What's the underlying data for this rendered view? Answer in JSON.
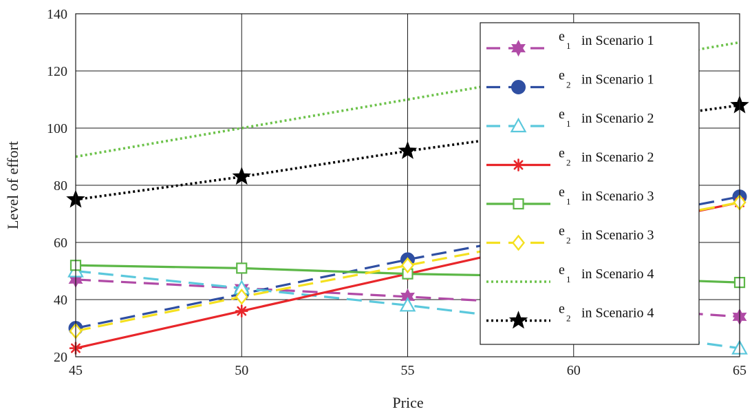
{
  "chart_data": {
    "type": "line",
    "xlabel": "Price",
    "ylabel": "Level of effort",
    "xlim": [
      45,
      65
    ],
    "ylim": [
      20,
      140
    ],
    "xticks": [
      45,
      50,
      55,
      60,
      65
    ],
    "yticks": [
      20,
      40,
      60,
      80,
      100,
      120,
      140
    ],
    "grid": true,
    "legend_position": "top-right",
    "series": [
      {
        "name": "e1 in Scenario 1",
        "var": "e",
        "sub": "1",
        "label_rest": "in Scenario 1",
        "color": "#b04aa6",
        "dash": "dashed",
        "marker": "hexstar",
        "x": [
          45,
          50,
          55,
          60,
          65
        ],
        "y": [
          47,
          44,
          41,
          38,
          34
        ]
      },
      {
        "name": "e2 in Scenario 1",
        "var": "e",
        "sub": "2",
        "label_rest": "in Scenario 1",
        "color": "#2f4fa2",
        "dash": "dashed",
        "marker": "circle",
        "x": [
          45,
          50,
          55,
          60,
          65
        ],
        "y": [
          30,
          42,
          54,
          65,
          76
        ]
      },
      {
        "name": "e1 in Scenario 2",
        "var": "e",
        "sub": "1",
        "label_rest": "in Scenario 2",
        "color": "#5bc8dc",
        "dash": "dashed",
        "marker": "triangle",
        "x": [
          45,
          50,
          55,
          60,
          65
        ],
        "y": [
          50,
          44,
          38,
          31,
          23
        ]
      },
      {
        "name": "e2 in Scenario 2",
        "var": "e",
        "sub": "2",
        "label_rest": "in Scenario 2",
        "color": "#e8262a",
        "dash": "solid",
        "marker": "asterisk",
        "x": [
          45,
          50,
          55,
          60,
          65
        ],
        "y": [
          23,
          36,
          49,
          62,
          74
        ]
      },
      {
        "name": "e1 in Scenario 3",
        "var": "e",
        "sub": "1",
        "label_rest": "in Scenario 3",
        "color": "#5cb747",
        "dash": "solid",
        "marker": "square",
        "x": [
          45,
          50,
          55,
          60,
          65
        ],
        "y": [
          52,
          51,
          49,
          48,
          46
        ]
      },
      {
        "name": "e2 in Scenario 3",
        "var": "e",
        "sub": "2",
        "label_rest": "in Scenario 3",
        "color": "#f4e020",
        "dash": "dashed",
        "marker": "diamond",
        "x": [
          45,
          50,
          55,
          60,
          65
        ],
        "y": [
          29,
          41,
          52,
          63,
          74
        ]
      },
      {
        "name": "e1 in Scenario 4",
        "var": "e",
        "sub": "1",
        "label_rest": "in Scenario 4",
        "color": "#6cc24a",
        "dash": "dotted",
        "marker": "none",
        "x": [
          45,
          65
        ],
        "y": [
          90,
          130
        ]
      },
      {
        "name": "e2 in Scenario 4",
        "var": "e",
        "sub": "2",
        "label_rest": "in Scenario 4",
        "color": "#000000",
        "dash": "dotted",
        "marker": "star",
        "x": [
          45,
          50,
          55,
          60,
          65
        ],
        "y": [
          75,
          83,
          92,
          100,
          108
        ]
      }
    ]
  }
}
